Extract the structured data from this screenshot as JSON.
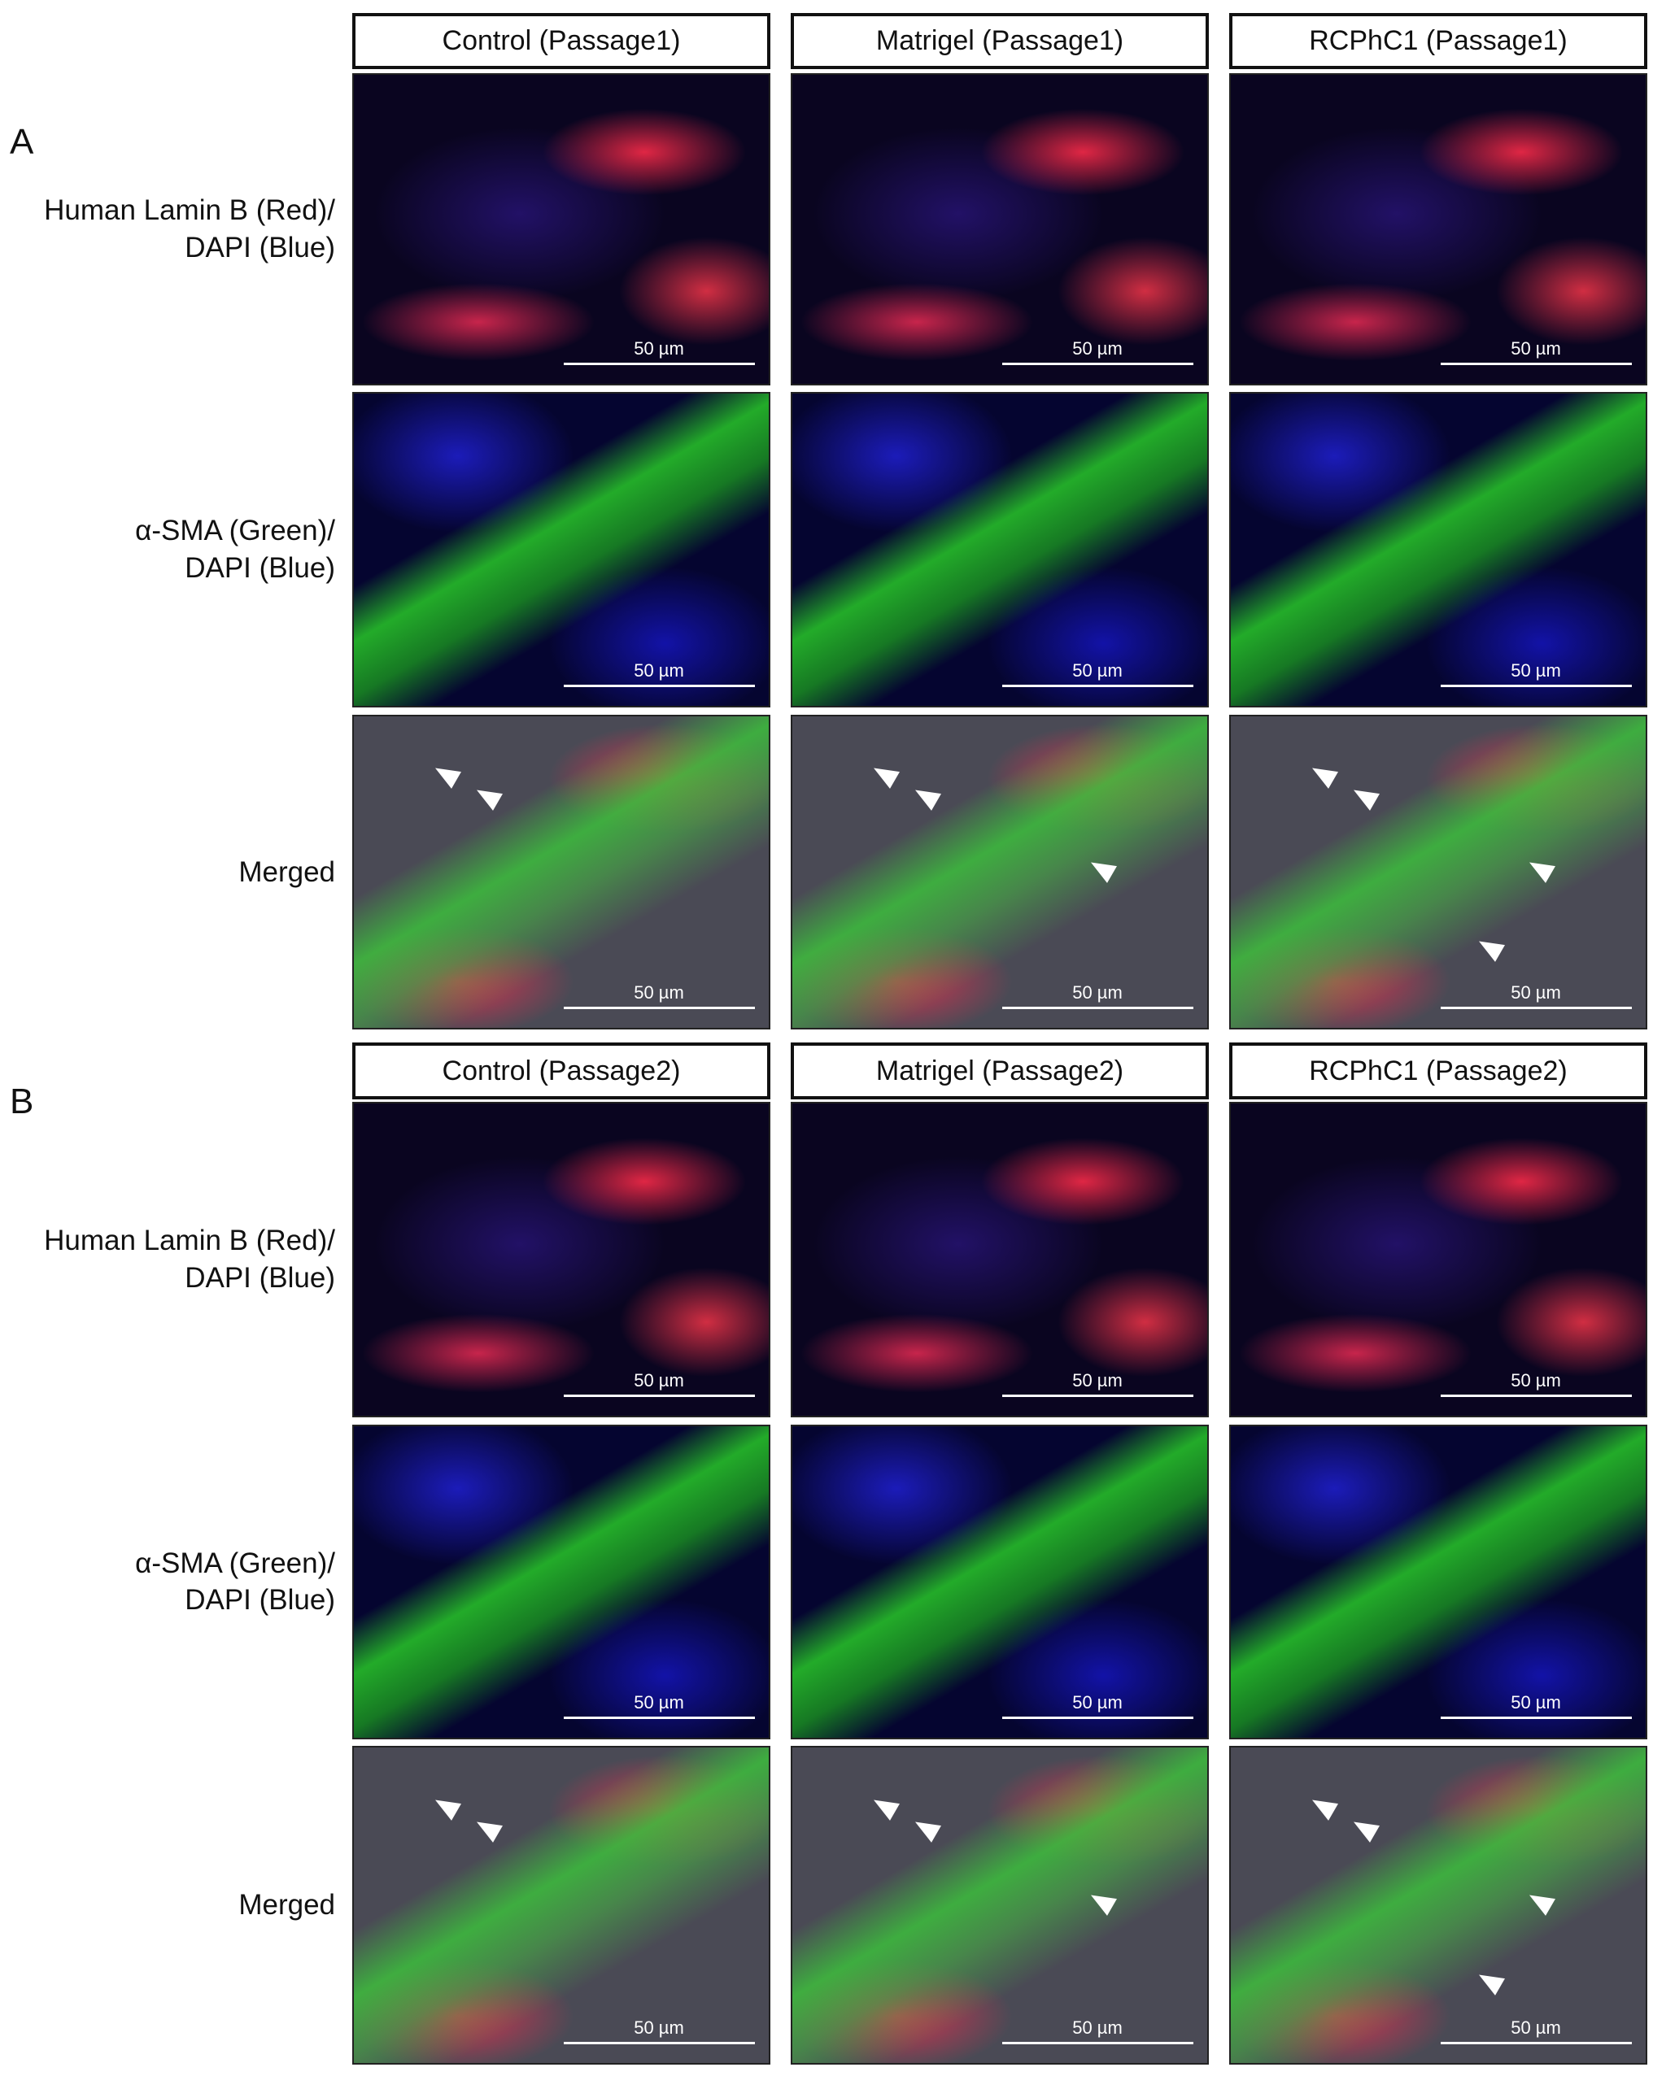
{
  "sections": [
    {
      "label": "A",
      "columns": [
        "Control (Passage1)",
        "Matrigel (Passage1)",
        "RCPhC1 (Passage1)"
      ],
      "rows": [
        {
          "label": [
            "Human Lamin B (Red)/",
            "DAPI (Blue)"
          ],
          "panels": [
            {
              "scale_bar": "50 µm"
            },
            {
              "scale_bar": "50 µm"
            },
            {
              "scale_bar": "50 µm"
            }
          ]
        },
        {
          "label": [
            "α-SMA (Green)/",
            "DAPI (Blue)"
          ],
          "panels": [
            {
              "scale_bar": "50 µm"
            },
            {
              "scale_bar": "50 µm"
            },
            {
              "scale_bar": "50 µm"
            }
          ]
        },
        {
          "label": [
            "Merged"
          ],
          "panels": [
            {
              "scale_bar": "50 µm"
            },
            {
              "scale_bar": "50 µm"
            },
            {
              "scale_bar": "50 µm"
            }
          ]
        }
      ]
    },
    {
      "label": "B",
      "columns": [
        "Control (Passage2)",
        "Matrigel (Passage2)",
        "RCPhC1 (Passage2)"
      ],
      "rows": [
        {
          "label": [
            "Human Lamin B (Red)/",
            "DAPI (Blue)"
          ],
          "panels": [
            {
              "scale_bar": "50 µm"
            },
            {
              "scale_bar": "50 µm"
            },
            {
              "scale_bar": "50 µm"
            }
          ]
        },
        {
          "label": [
            "α-SMA (Green)/",
            "DAPI (Blue)"
          ],
          "panels": [
            {
              "scale_bar": "50 µm"
            },
            {
              "scale_bar": "50 µm"
            },
            {
              "scale_bar": "50 µm"
            }
          ]
        },
        {
          "label": [
            "Merged"
          ],
          "panels": [
            {
              "scale_bar": "50 µm"
            },
            {
              "scale_bar": "50 µm"
            },
            {
              "scale_bar": "50 µm"
            }
          ]
        }
      ]
    }
  ]
}
